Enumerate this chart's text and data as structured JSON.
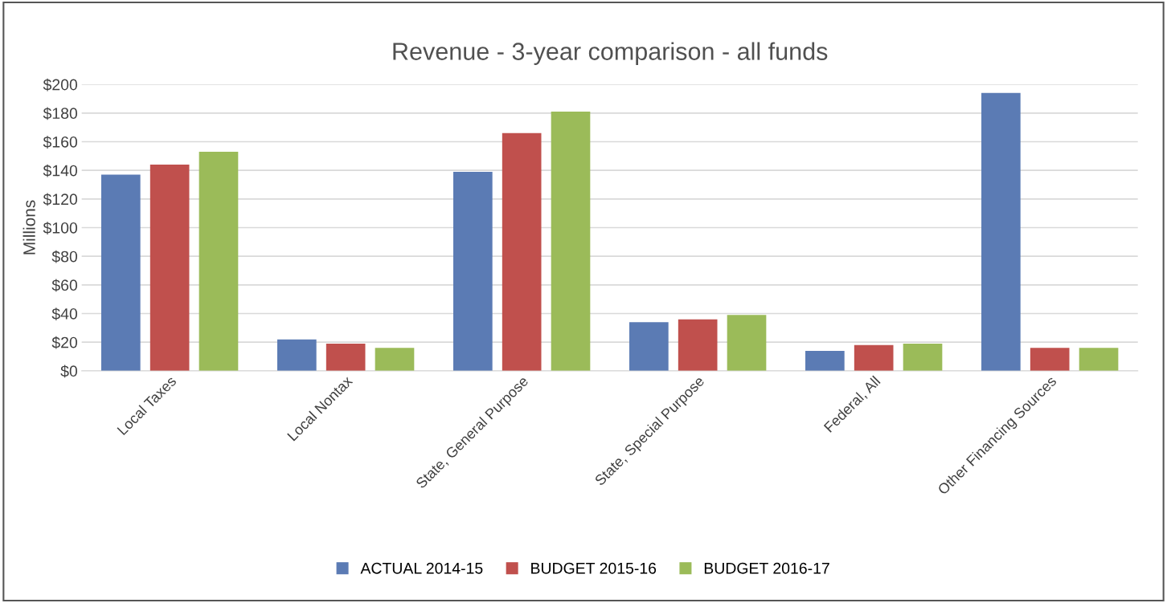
{
  "chart_data": {
    "type": "bar",
    "title": "Revenue - 3-year comparison - all funds",
    "ylabel": "Millions",
    "categories": [
      "Local Taxes",
      "Local Nontax",
      "State, General Purpose",
      "State, Special Purpose",
      "Federal, All",
      "Other Financing Sources"
    ],
    "series": [
      {
        "name": "ACTUAL 2014-15",
        "color": "#5b7bb4",
        "values": [
          137,
          22,
          139,
          34,
          14,
          194
        ]
      },
      {
        "name": "BUDGET 2015-16",
        "color": "#c0504d",
        "values": [
          144,
          19,
          166,
          36,
          18,
          16
        ]
      },
      {
        "name": "BUDGET 2016-17",
        "color": "#9bbb59",
        "values": [
          153,
          16,
          181,
          39,
          19,
          16
        ]
      }
    ],
    "ylim": [
      0,
      200
    ],
    "yticks": [
      {
        "value": 0,
        "label": "$0"
      },
      {
        "value": 20,
        "label": "$20"
      },
      {
        "value": 40,
        "label": "$40"
      },
      {
        "value": 60,
        "label": "$60"
      },
      {
        "value": 80,
        "label": "$80"
      },
      {
        "value": 100,
        "label": "$100"
      },
      {
        "value": 120,
        "label": "$120"
      },
      {
        "value": 140,
        "label": "$140"
      },
      {
        "value": 160,
        "label": "$160"
      },
      {
        "value": 180,
        "label": "$180"
      },
      {
        "value": 200,
        "label": "$200"
      }
    ],
    "grid": "y",
    "legend": "bottom"
  }
}
